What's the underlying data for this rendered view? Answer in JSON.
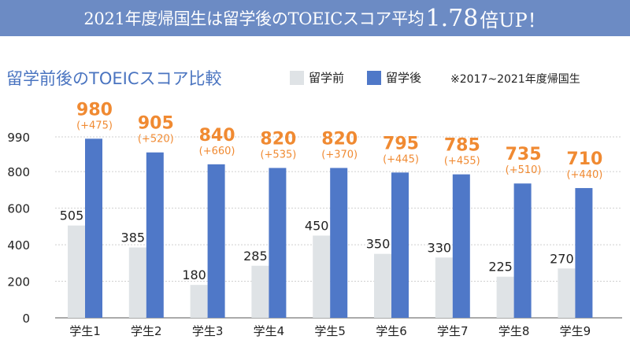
{
  "banner": {
    "text_main": "2021年度帰国生は留学後のTOEICスコア平均",
    "text_value": "1.78",
    "text_tail": "倍UP！"
  },
  "chart_title": "留学前後のTOEICスコア比較",
  "legend": {
    "before": "留学前",
    "after": "留学後"
  },
  "note": "※2017~2021年度帰国生",
  "colors": {
    "banner": "#6c8bc4",
    "before": "#dfe3e6",
    "after": "#4f78c8",
    "highlight": "#f08a32",
    "subtitle": "#4a74c0"
  },
  "chart_data": {
    "type": "bar",
    "title": "留学前後のTOEICスコア比較",
    "categories": [
      "学生1",
      "学生2",
      "学生3",
      "学生4",
      "学生5",
      "学生6",
      "学生7",
      "学生8",
      "学生9"
    ],
    "series": [
      {
        "name": "留学前",
        "values": [
          505,
          385,
          180,
          285,
          450,
          350,
          330,
          225,
          270
        ]
      },
      {
        "name": "留学後",
        "values": [
          980,
          905,
          840,
          820,
          820,
          795,
          785,
          735,
          710
        ]
      }
    ],
    "increase_labels": [
      "(+475)",
      "(+520)",
      "(+660)",
      "(+535)",
      "(+370)",
      "(+445)",
      "(+455)",
      "(+510)",
      "(+440)"
    ],
    "yticks": [
      0,
      200,
      400,
      600,
      800,
      990
    ],
    "ylim": [
      0,
      990
    ],
    "grid": true,
    "legend_position": "top-right"
  }
}
